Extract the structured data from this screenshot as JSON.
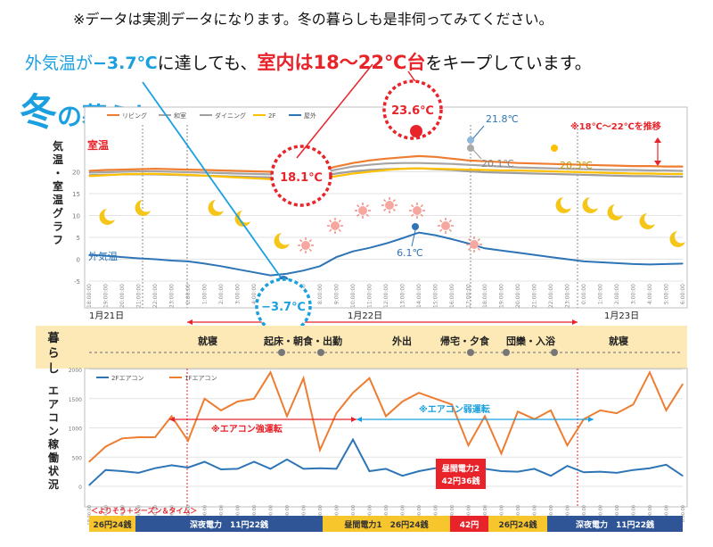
{
  "header": {
    "note": "※データは実測データになります。冬の暮らしも是非伺ってみてください。",
    "line2_prefix": "外気温が",
    "line2_value": "−3.7℃",
    "line2_mid": "に達しても、",
    "line2_room": "室内は18〜22℃台",
    "line2_suffix": "をキープしています。"
  },
  "season_title": {
    "kanji": "冬",
    "rest": "の暮らし"
  },
  "temp_chart_ylabel": "気温・室温グラフ",
  "legend_top": [
    "リビング",
    "和室",
    "ダイニング",
    "2F",
    "屋外"
  ],
  "label_room": "室温",
  "label_outdoor": "外気温",
  "range_note": "※18℃〜22℃を推移",
  "callouts": {
    "c1": "18.1℃",
    "c2": "23.6℃",
    "c3": "21.8℃",
    "c4": "20.1℃",
    "c5": "20.3℃",
    "c6": "6.1℃",
    "c7": "−3.7℃"
  },
  "dates": {
    "d1": "1月21日",
    "d2": "1月22日",
    "d3": "1月23日"
  },
  "lifestyle": {
    "label": "暮らし",
    "events": [
      "就寝",
      "起床・朝食・出勤",
      "外出",
      "帰宅・夕食",
      "団欒・入浴",
      "就寝"
    ]
  },
  "ac_chart": {
    "ylabel": "エアコン稼働状況",
    "legend": [
      "2Fエアコン",
      "1Fエアコン"
    ],
    "note_strong": "※エアコン強運転",
    "note_weak": "※エアコン弱運転"
  },
  "tariff": {
    "title": "＜よりそう＋シーズン＆タイム＞",
    "segments": [
      "26円24銭",
      "深夜電力　11円22銭",
      "昼間電力1　26円24銭",
      "42円",
      "26円24銭",
      "深夜電力　11円22銭"
    ],
    "peak_label_1": "昼間電力2",
    "peak_label_2": "42円36銭"
  },
  "colors": {
    "red": "#e8232a",
    "blue": "#2e75b6",
    "sky": "#1aa0e0",
    "orange": "#ed7d31",
    "yellow": "#ffc000",
    "gray": "#a5a5a5",
    "band": "#fce9b6",
    "tariff_blue": "#2f5597",
    "tariff_yellow": "#f7c52c"
  },
  "chart_data": [
    {
      "type": "line",
      "title": "",
      "ylim": [
        -5,
        25
      ],
      "yticks": [
        -5,
        0,
        5,
        10,
        15,
        20
      ],
      "x": [
        "18:00:00",
        "19:00:00",
        "20:00:00",
        "21:00:00",
        "22:00:00",
        "23:00:00",
        "0:00:00",
        "1:00:00",
        "2:00:00",
        "3:00:00",
        "4:00:00",
        "5:00:00",
        "6:00:00",
        "7:00:00",
        "8:00:00",
        "9:00:00",
        "10:00:00",
        "11:00:00",
        "12:00:00",
        "13:00:00",
        "14:00:00",
        "15:00:00",
        "16:00:00",
        "17:00:00",
        "18:00:00",
        "19:00:00",
        "20:00:00",
        "21:00:00",
        "22:00:00",
        "23:00:00",
        "0:00:00",
        "1:00:00",
        "2:00:00",
        "3:00:00",
        "4:00:00",
        "5:00:00",
        "6:00:00"
      ],
      "series": [
        {
          "name": "リビング",
          "values": [
            20.2,
            20.4,
            20.5,
            20.6,
            20.7,
            20.6,
            20.5,
            20.4,
            20.3,
            20.2,
            20.1,
            20.0,
            19.9,
            19.9,
            20.3,
            21.2,
            22.0,
            22.6,
            23.0,
            23.3,
            23.6,
            23.4,
            23.0,
            22.6,
            22.4,
            22.2,
            22.0,
            21.9,
            21.8,
            21.7,
            21.6,
            21.5,
            21.4,
            21.3,
            21.3,
            21.2,
            21.2
          ]
        },
        {
          "name": "和室",
          "values": [
            19.8,
            19.9,
            20.0,
            20.1,
            20.1,
            20.0,
            19.9,
            19.8,
            19.7,
            19.6,
            19.5,
            19.4,
            19.3,
            19.4,
            19.8,
            20.5,
            21.2,
            21.6,
            21.9,
            22.0,
            22.0,
            21.9,
            21.8,
            21.6,
            21.4,
            21.2,
            21.0,
            20.9,
            20.8,
            20.7,
            20.6,
            20.5,
            20.4,
            20.4,
            20.3,
            20.3,
            20.2
          ]
        },
        {
          "name": "ダイニング",
          "values": [
            19.2,
            19.3,
            19.4,
            19.4,
            19.4,
            19.3,
            19.2,
            19.1,
            19.0,
            18.9,
            18.8,
            18.7,
            18.6,
            18.6,
            19.0,
            19.6,
            20.1,
            20.4,
            20.6,
            20.7,
            20.8,
            20.6,
            20.4,
            20.1,
            19.9,
            19.8,
            19.7,
            19.6,
            19.5,
            19.4,
            19.3,
            19.2,
            19.1,
            19.0,
            19.0,
            18.9,
            18.9
          ]
        },
        {
          "name": "2F",
          "values": [
            19.0,
            19.2,
            19.4,
            19.5,
            19.5,
            19.4,
            19.3,
            19.1,
            18.9,
            18.7,
            18.5,
            18.3,
            18.2,
            18.1,
            18.4,
            19.0,
            19.6,
            20.0,
            20.4,
            20.7,
            20.8,
            20.7,
            20.6,
            20.5,
            20.4,
            20.3,
            20.3,
            20.2,
            20.1,
            20.0,
            19.9,
            19.8,
            19.7,
            19.6,
            19.6,
            19.5,
            19.5
          ]
        },
        {
          "name": "屋外",
          "values": [
            1.0,
            0.8,
            0.5,
            0.2,
            0.0,
            -0.3,
            -0.5,
            -1.0,
            -1.6,
            -2.3,
            -3.0,
            -3.7,
            -3.3,
            -2.6,
            -1.6,
            0.5,
            1.8,
            2.6,
            3.6,
            4.8,
            6.1,
            5.5,
            4.6,
            3.6,
            2.5,
            2.0,
            1.5,
            1.0,
            0.5,
            0.0,
            -0.5,
            -0.7,
            -0.9,
            -1.1,
            -1.2,
            -1.1,
            -1.0
          ]
        }
      ]
    },
    {
      "type": "line",
      "title": "",
      "ylim": [
        0,
        2000
      ],
      "yticks": [
        0,
        500,
        1000,
        1500,
        2000
      ],
      "x": [
        "18:00:00",
        "19:00:00",
        "20:00:00",
        "21:00:00",
        "22:00:00",
        "23:00:00",
        "0:00:00",
        "1:00:00",
        "2:00:00",
        "3:00:00",
        "4:00:00",
        "5:00:00",
        "6:00:00",
        "7:00:00",
        "8:00:00",
        "9:00:00",
        "10:00:00",
        "11:00:00",
        "12:00:00",
        "13:00:00",
        "14:00:00",
        "15:00:00",
        "16:00:00",
        "17:00:00",
        "18:00:00",
        "19:00:00",
        "20:00:00",
        "21:00:00",
        "22:00:00",
        "23:00:00",
        "0:00:00",
        "1:00:00",
        "2:00:00",
        "3:00:00",
        "4:00:00",
        "5:00:00",
        "6:00:00"
      ],
      "series": [
        {
          "name": "2Fエアコン",
          "values": [
            20,
            280,
            260,
            230,
            310,
            360,
            320,
            420,
            290,
            300,
            420,
            300,
            460,
            300,
            310,
            300,
            800,
            260,
            300,
            180,
            260,
            310,
            260,
            230,
            300,
            260,
            250,
            300,
            180,
            350,
            240,
            250,
            230,
            280,
            310,
            370,
            180
          ]
        },
        {
          "name": "1Fエアコン",
          "values": [
            420,
            680,
            820,
            840,
            840,
            1200,
            780,
            1500,
            1300,
            1450,
            1500,
            1950,
            1200,
            1850,
            620,
            1250,
            1600,
            1850,
            1200,
            1450,
            1600,
            1500,
            1400,
            700,
            1200,
            560,
            1280,
            1150,
            1300,
            700,
            1150,
            1300,
            1250,
            1400,
            1950,
            1300,
            1750
          ]
        }
      ]
    }
  ]
}
